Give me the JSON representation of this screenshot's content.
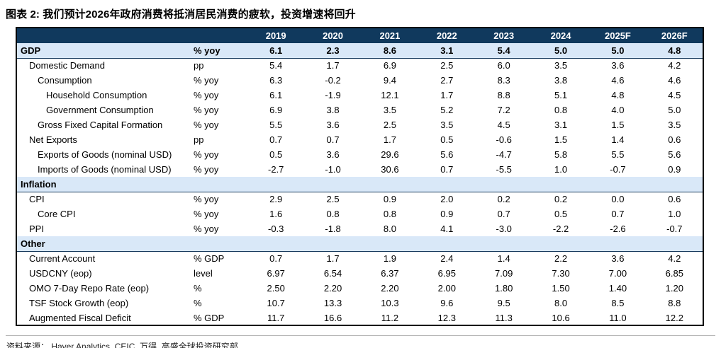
{
  "chart_data": {
    "type": "table",
    "title": "图表 2: 我们预计2026年政府消费将抵消居民消费的疲软，投资增速将回升",
    "columns": [
      "2019",
      "2020",
      "2021",
      "2022",
      "2023",
      "2024",
      "2025F",
      "2026F"
    ],
    "rows": [
      {
        "label": "GDP",
        "unit": "% yoy",
        "values": [
          "6.1",
          "2.3",
          "8.6",
          "3.1",
          "5.4",
          "5.0",
          "5.0",
          "4.8"
        ],
        "style": "highlight",
        "indent": 0
      },
      {
        "label": "Domestic Demand",
        "unit": "pp",
        "values": [
          "5.4",
          "1.7",
          "6.9",
          "2.5",
          "6.0",
          "3.5",
          "3.6",
          "4.2"
        ],
        "style": "data",
        "indent": 1
      },
      {
        "label": "Consumption",
        "unit": "% yoy",
        "values": [
          "6.3",
          "-0.2",
          "9.4",
          "2.7",
          "8.3",
          "3.8",
          "4.6",
          "4.6"
        ],
        "style": "data",
        "indent": 2
      },
      {
        "label": "Household Consumption",
        "unit": "% yoy",
        "values": [
          "6.1",
          "-1.9",
          "12.1",
          "1.7",
          "8.8",
          "5.1",
          "4.8",
          "4.5"
        ],
        "style": "data",
        "indent": 3
      },
      {
        "label": "Government Consumption",
        "unit": "% yoy",
        "values": [
          "6.9",
          "3.8",
          "3.5",
          "5.2",
          "7.2",
          "0.8",
          "4.0",
          "5.0"
        ],
        "style": "data",
        "indent": 3
      },
      {
        "label": "Gross Fixed Capital Formation",
        "unit": "% yoy",
        "values": [
          "5.5",
          "3.6",
          "2.5",
          "3.5",
          "4.5",
          "3.1",
          "1.5",
          "3.5"
        ],
        "style": "data",
        "indent": 2
      },
      {
        "label": "Net Exports",
        "unit": "pp",
        "values": [
          "0.7",
          "0.7",
          "1.7",
          "0.5",
          "-0.6",
          "1.5",
          "1.4",
          "0.6"
        ],
        "style": "data",
        "indent": 1
      },
      {
        "label": "Exports of Goods (nominal USD)",
        "unit": "% yoy",
        "values": [
          "0.5",
          "3.6",
          "29.6",
          "5.6",
          "-4.7",
          "5.8",
          "5.5",
          "5.6"
        ],
        "style": "data",
        "indent": 2
      },
      {
        "label": "Imports of Goods (nominal USD)",
        "unit": "% yoy",
        "values": [
          "-2.7",
          "-1.0",
          "30.6",
          "0.7",
          "-5.5",
          "1.0",
          "-0.7",
          "0.9"
        ],
        "style": "data",
        "indent": 2
      },
      {
        "label": "Inflation",
        "unit": "",
        "values": [],
        "style": "section",
        "indent": 0
      },
      {
        "label": "CPI",
        "unit": "% yoy",
        "values": [
          "2.9",
          "2.5",
          "0.9",
          "2.0",
          "0.2",
          "0.2",
          "0.0",
          "0.6"
        ],
        "style": "data",
        "indent": 1
      },
      {
        "label": "Core CPI",
        "unit": "% yoy",
        "values": [
          "1.6",
          "0.8",
          "0.8",
          "0.9",
          "0.7",
          "0.5",
          "0.7",
          "1.0"
        ],
        "style": "data",
        "indent": 2
      },
      {
        "label": "PPI",
        "unit": "% yoy",
        "values": [
          "-0.3",
          "-1.8",
          "8.0",
          "4.1",
          "-3.0",
          "-2.2",
          "-2.6",
          "-0.7"
        ],
        "style": "data",
        "indent": 1
      },
      {
        "label": "Other",
        "unit": "",
        "values": [],
        "style": "section",
        "indent": 0
      },
      {
        "label": "Current Account",
        "unit": "% GDP",
        "values": [
          "0.7",
          "1.7",
          "1.9",
          "2.4",
          "1.4",
          "2.2",
          "3.6",
          "4.2"
        ],
        "style": "data",
        "indent": 1
      },
      {
        "label": "USDCNY (eop)",
        "unit": "level",
        "values": [
          "6.97",
          "6.54",
          "6.37",
          "6.95",
          "7.09",
          "7.30",
          "7.00",
          "6.85"
        ],
        "style": "data",
        "indent": 1
      },
      {
        "label": "OMO 7-Day Repo Rate (eop)",
        "unit": "%",
        "values": [
          "2.50",
          "2.20",
          "2.20",
          "2.00",
          "1.80",
          "1.50",
          "1.40",
          "1.20"
        ],
        "style": "data",
        "indent": 1
      },
      {
        "label": "TSF Stock Growth (eop)",
        "unit": "%",
        "values": [
          "10.7",
          "13.3",
          "10.3",
          "9.6",
          "9.5",
          "8.0",
          "8.5",
          "8.8"
        ],
        "style": "data",
        "indent": 1
      },
      {
        "label": "Augmented Fiscal Deficit",
        "unit": "% GDP",
        "values": [
          "11.7",
          "16.6",
          "11.2",
          "12.3",
          "11.3",
          "10.6",
          "11.0",
          "12.2"
        ],
        "style": "data",
        "indent": 1
      }
    ],
    "source": "资料来源： Haver Analytics, CEIC, 万得, 高盛全球投资研究部",
    "colors": {
      "header_bg": "#10395d",
      "header_text": "#ffffff",
      "band_bg": "#d9e8f8",
      "band_border": "#16395c",
      "table_border": "#000000"
    }
  }
}
